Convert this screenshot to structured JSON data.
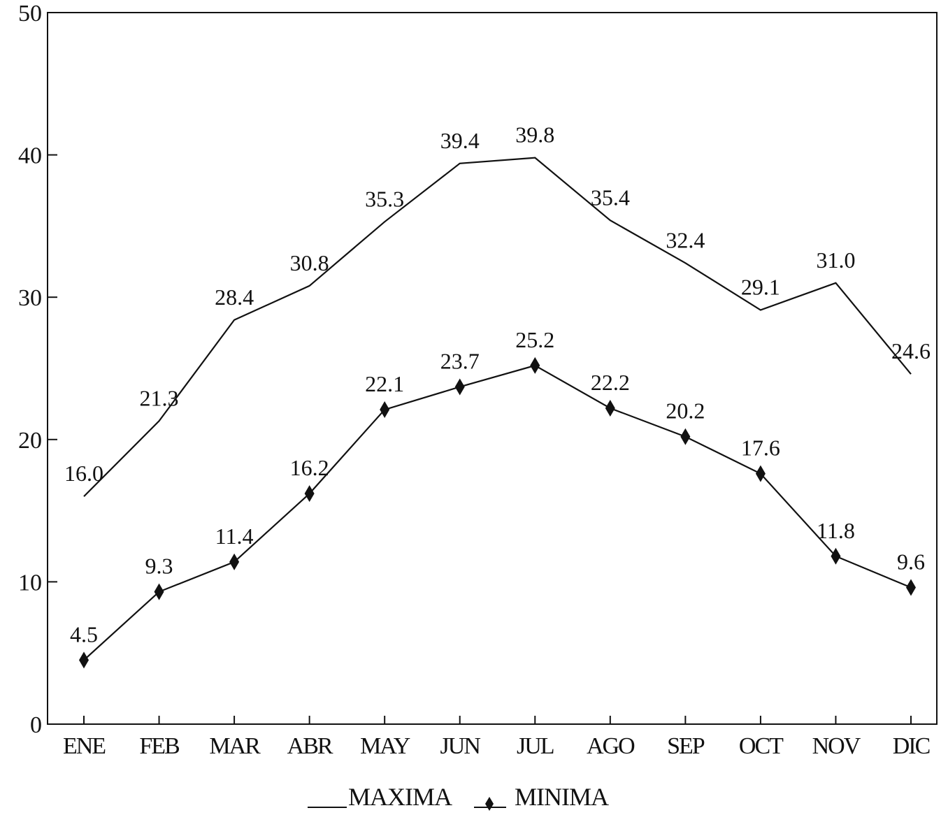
{
  "chart_data": {
    "type": "line",
    "categories": [
      "ENE",
      "FEB",
      "MAR",
      "ABR",
      "MAY",
      "JUN",
      "JUL",
      "AGO",
      "SEP",
      "OCT",
      "NOV",
      "DIC"
    ],
    "series": [
      {
        "name": "MAXIMA",
        "marker": "none",
        "values": [
          16.0,
          21.3,
          28.4,
          30.8,
          35.3,
          39.4,
          39.8,
          35.4,
          32.4,
          29.1,
          31.0,
          24.6
        ],
        "labels": [
          "16.0",
          "21.3",
          "28.4",
          "30.8",
          "35.3",
          "39.4",
          "39.8",
          "35.4",
          "32.4",
          "29.1",
          "31.0",
          "24.6"
        ]
      },
      {
        "name": "MINIMA",
        "marker": "diamond",
        "values": [
          4.5,
          9.3,
          11.4,
          16.2,
          22.1,
          23.7,
          25.2,
          22.2,
          20.2,
          17.6,
          11.8,
          9.6
        ],
        "labels": [
          "4.5",
          "9.3",
          "11.4",
          "16.2",
          "22.1",
          "23.7",
          "25.2",
          "22.2",
          "20.2",
          "17.6",
          "11.8",
          "9.6"
        ]
      }
    ],
    "ylim": [
      0,
      50
    ],
    "yticks": [
      "0",
      "10",
      "20",
      "30",
      "40",
      "50"
    ],
    "grid": false,
    "legend": "bottom",
    "line_color": "#111111"
  }
}
